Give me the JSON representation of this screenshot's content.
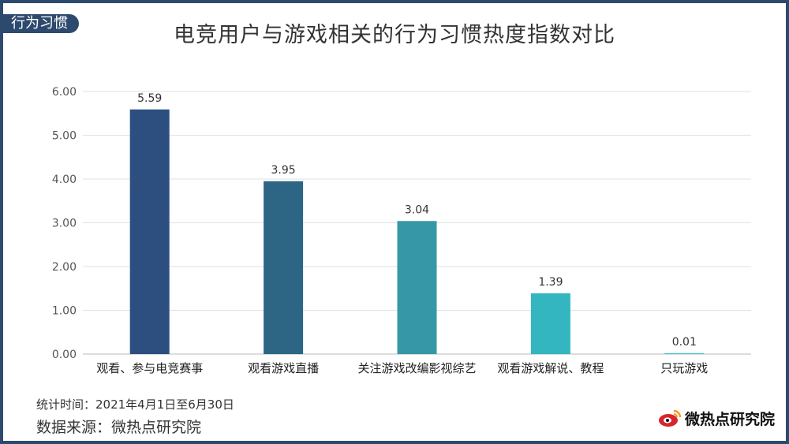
{
  "header": {
    "tag": "行为习惯",
    "title": "电竞用户与游戏相关的行为习惯热度指数对比"
  },
  "chart_data": {
    "type": "bar",
    "categories": [
      "观看、参与电竞赛事",
      "观看游戏直播",
      "关注游戏改编影视综艺",
      "观看游戏解说、教程",
      "只玩游戏"
    ],
    "values": [
      5.59,
      3.95,
      3.04,
      1.39,
      0.01
    ],
    "value_labels": [
      "5.59",
      "3.95",
      "3.04",
      "1.39",
      "0.01"
    ],
    "colors": [
      "#2d4f80",
      "#2d6684",
      "#3698a6",
      "#33b6c0",
      "#33c2bf"
    ],
    "yticks": [
      "0.00",
      "1.00",
      "2.00",
      "3.00",
      "4.00",
      "5.00",
      "6.00"
    ],
    "ylim": [
      0,
      6
    ],
    "grid": true,
    "legend": "none"
  },
  "footer": {
    "note": "统计时间：2021年4月1日至6月30日",
    "source": "数据来源：微热点研究院",
    "logo_text": "微热点研究院"
  }
}
